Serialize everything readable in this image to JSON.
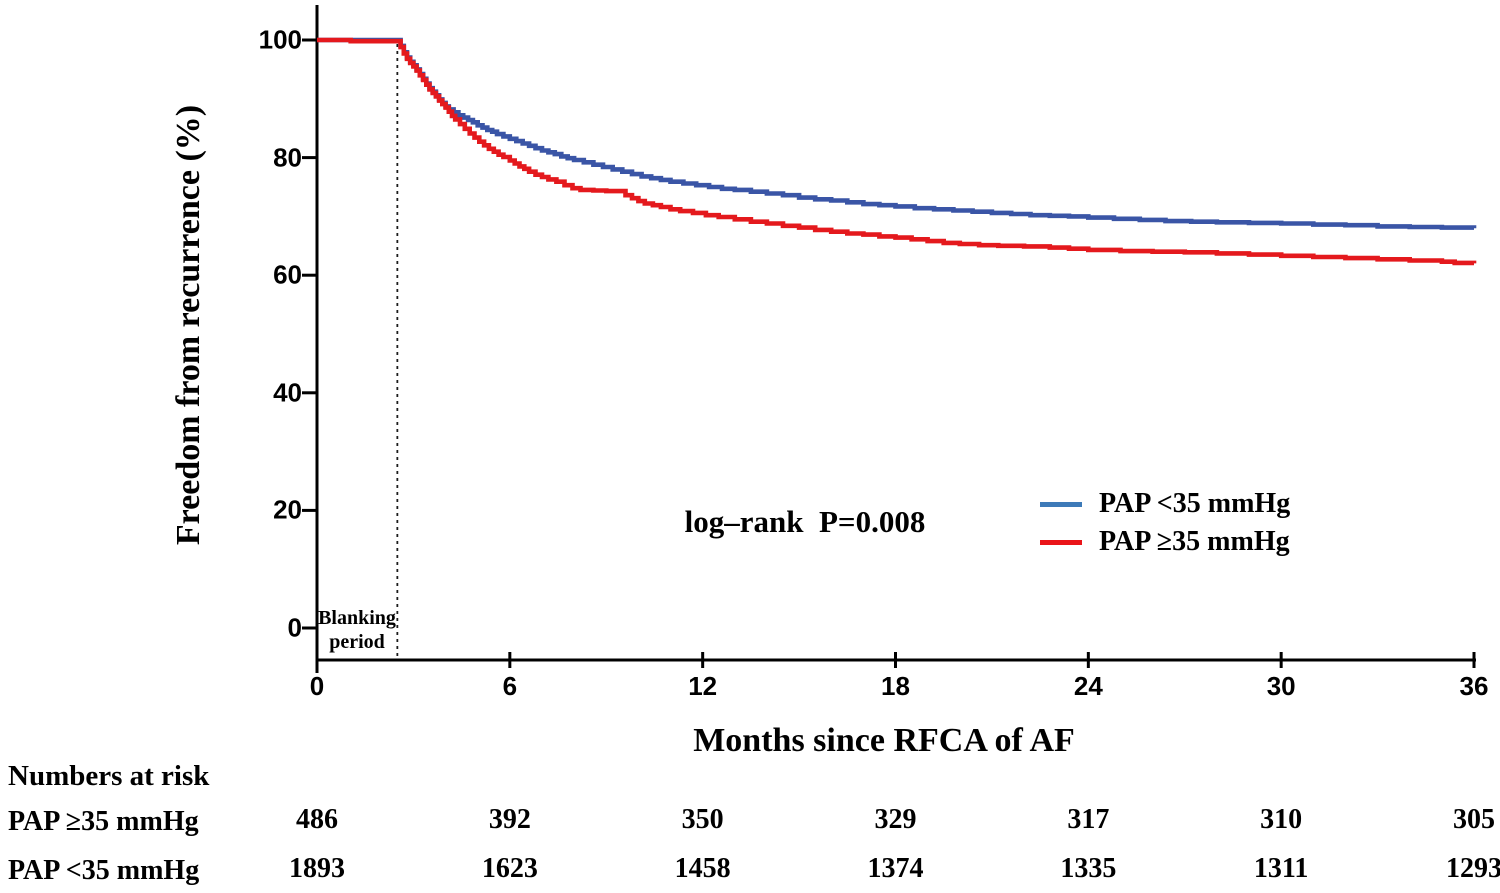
{
  "colors": {
    "background": "#ffffff",
    "axis": "#000000",
    "dashed_line": "#1c1c1c",
    "text": "#000000",
    "curve_blue": "#3a55a6",
    "curve_red": "#e4191d",
    "legend_blue": "#3d7ab8",
    "legend_red": "#ea1419"
  },
  "annotations": {
    "log_rank": "log–rank  P=0.008",
    "blanking_line1": "Blanking",
    "blanking_line2": "period"
  },
  "legend": [
    {
      "label": "PAP <35 mmHg",
      "color": "#3d7ab8"
    },
    {
      "label": "PAP ≥35 mmHg",
      "color": "#ea1419"
    }
  ],
  "risk_table": {
    "header": "Numbers at risk"
  },
  "chart_data": {
    "type": "line",
    "subtype": "kaplan-meier-step",
    "title": "",
    "xlabel": "Months since RFCA of AF",
    "ylabel": "Freedom from recurrence (%)",
    "xlim": [
      0,
      36
    ],
    "ylim": [
      0,
      100
    ],
    "x_ticks": [
      0,
      6,
      12,
      18,
      24,
      30,
      36
    ],
    "y_ticks": [
      0,
      20,
      40,
      60,
      80,
      100
    ],
    "grid": false,
    "legend_position": "right-middle",
    "blanking_period_end_month": 2.5,
    "log_rank_p": 0.008,
    "series": [
      {
        "name": "PAP <35 mmHg",
        "color": "#3a55a6",
        "step": true,
        "points": [
          [
            0,
            100
          ],
          [
            2.52,
            100
          ],
          [
            2.6,
            99.0
          ],
          [
            2.7,
            97.9
          ],
          [
            2.8,
            97.0
          ],
          [
            2.9,
            96.3
          ],
          [
            3.0,
            95.7
          ],
          [
            3.1,
            95.0
          ],
          [
            3.2,
            94.2
          ],
          [
            3.3,
            93.4
          ],
          [
            3.4,
            92.6
          ],
          [
            3.5,
            91.8
          ],
          [
            3.6,
            91.2
          ],
          [
            3.7,
            90.6
          ],
          [
            3.8,
            89.9
          ],
          [
            3.9,
            89.3
          ],
          [
            4.0,
            88.7
          ],
          [
            4.1,
            88.2
          ],
          [
            4.25,
            87.7
          ],
          [
            4.4,
            87.2
          ],
          [
            4.55,
            86.8
          ],
          [
            4.7,
            86.4
          ],
          [
            4.85,
            86.0
          ],
          [
            5.0,
            85.5
          ],
          [
            5.15,
            85.1
          ],
          [
            5.3,
            84.7
          ],
          [
            5.45,
            84.4
          ],
          [
            5.6,
            84.0
          ],
          [
            5.8,
            83.6
          ],
          [
            6.0,
            83.2
          ],
          [
            6.2,
            82.8
          ],
          [
            6.4,
            82.4
          ],
          [
            6.6,
            82.0
          ],
          [
            6.8,
            81.6
          ],
          [
            7.0,
            81.2
          ],
          [
            7.2,
            80.9
          ],
          [
            7.4,
            80.6
          ],
          [
            7.6,
            80.2
          ],
          [
            7.8,
            79.9
          ],
          [
            8.0,
            79.6
          ],
          [
            8.3,
            79.2
          ],
          [
            8.6,
            78.8
          ],
          [
            8.9,
            78.4
          ],
          [
            9.2,
            78.0
          ],
          [
            9.5,
            77.6
          ],
          [
            9.8,
            77.2
          ],
          [
            10.1,
            76.8
          ],
          [
            10.4,
            76.5
          ],
          [
            10.7,
            76.2
          ],
          [
            11.0,
            75.9
          ],
          [
            11.4,
            75.6
          ],
          [
            11.8,
            75.3
          ],
          [
            12.2,
            75.0
          ],
          [
            12.6,
            74.7
          ],
          [
            13.0,
            74.5
          ],
          [
            13.5,
            74.2
          ],
          [
            14.0,
            73.9
          ],
          [
            14.5,
            73.6
          ],
          [
            15.0,
            73.2
          ],
          [
            15.5,
            72.9
          ],
          [
            16.0,
            72.7
          ],
          [
            16.5,
            72.4
          ],
          [
            17.0,
            72.1
          ],
          [
            17.5,
            71.9
          ],
          [
            18.0,
            71.7
          ],
          [
            18.6,
            71.4
          ],
          [
            19.2,
            71.2
          ],
          [
            19.8,
            71.0
          ],
          [
            20.4,
            70.8
          ],
          [
            21.0,
            70.6
          ],
          [
            21.6,
            70.4
          ],
          [
            22.2,
            70.2
          ],
          [
            22.8,
            70.1
          ],
          [
            23.4,
            70.0
          ],
          [
            24.0,
            69.8
          ],
          [
            24.8,
            69.6
          ],
          [
            25.6,
            69.4
          ],
          [
            26.4,
            69.2
          ],
          [
            27.2,
            69.1
          ],
          [
            28.0,
            69.0
          ],
          [
            29.0,
            68.9
          ],
          [
            30.0,
            68.8
          ],
          [
            31.0,
            68.6
          ],
          [
            32.0,
            68.5
          ],
          [
            33.0,
            68.3
          ],
          [
            34.0,
            68.2
          ],
          [
            35.0,
            68.1
          ],
          [
            36.0,
            68.0
          ]
        ]
      },
      {
        "name": "PAP ≥35 mmHg",
        "color": "#e4191d",
        "step": true,
        "points": [
          [
            0,
            100
          ],
          [
            1.0,
            100
          ],
          [
            1.05,
            99.8
          ],
          [
            2.52,
            99.8
          ],
          [
            2.6,
            98.8
          ],
          [
            2.7,
            97.7
          ],
          [
            2.8,
            96.8
          ],
          [
            2.9,
            96.1
          ],
          [
            3.0,
            95.5
          ],
          [
            3.1,
            94.8
          ],
          [
            3.2,
            94.0
          ],
          [
            3.3,
            93.2
          ],
          [
            3.4,
            92.4
          ],
          [
            3.5,
            91.6
          ],
          [
            3.6,
            91.0
          ],
          [
            3.7,
            90.4
          ],
          [
            3.8,
            89.7
          ],
          [
            3.9,
            89.1
          ],
          [
            4.0,
            88.5
          ],
          [
            4.1,
            87.8
          ],
          [
            4.2,
            87.1
          ],
          [
            4.3,
            86.5
          ],
          [
            4.45,
            85.7
          ],
          [
            4.6,
            84.9
          ],
          [
            4.75,
            84.1
          ],
          [
            4.9,
            83.4
          ],
          [
            5.05,
            82.7
          ],
          [
            5.2,
            82.1
          ],
          [
            5.35,
            81.5
          ],
          [
            5.5,
            81.0
          ],
          [
            5.65,
            80.5
          ],
          [
            5.8,
            80.1
          ],
          [
            6.0,
            79.5
          ],
          [
            6.15,
            79.0
          ],
          [
            6.3,
            78.5
          ],
          [
            6.45,
            78.1
          ],
          [
            6.6,
            77.6
          ],
          [
            6.8,
            77.1
          ],
          [
            7.0,
            76.7
          ],
          [
            7.2,
            76.3
          ],
          [
            7.45,
            75.9
          ],
          [
            7.7,
            75.3
          ],
          [
            7.95,
            74.8
          ],
          [
            8.2,
            74.5
          ],
          [
            8.6,
            74.4
          ],
          [
            9.0,
            74.3
          ],
          [
            9.45,
            74.3
          ],
          [
            9.6,
            73.6
          ],
          [
            9.8,
            73.1
          ],
          [
            10.0,
            72.6
          ],
          [
            10.2,
            72.2
          ],
          [
            10.45,
            71.9
          ],
          [
            10.7,
            71.6
          ],
          [
            11.0,
            71.2
          ],
          [
            11.3,
            70.9
          ],
          [
            11.7,
            70.6
          ],
          [
            12.1,
            70.2
          ],
          [
            12.5,
            69.9
          ],
          [
            13.0,
            69.5
          ],
          [
            13.5,
            69.1
          ],
          [
            14.0,
            68.8
          ],
          [
            14.5,
            68.4
          ],
          [
            15.0,
            68.1
          ],
          [
            15.5,
            67.7
          ],
          [
            16.0,
            67.4
          ],
          [
            16.5,
            67.1
          ],
          [
            17.0,
            66.9
          ],
          [
            17.5,
            66.6
          ],
          [
            18.0,
            66.4
          ],
          [
            18.5,
            66.1
          ],
          [
            19.0,
            65.8
          ],
          [
            19.5,
            65.5
          ],
          [
            20.0,
            65.3
          ],
          [
            20.6,
            65.1
          ],
          [
            21.2,
            65.0
          ],
          [
            22.0,
            64.9
          ],
          [
            22.8,
            64.7
          ],
          [
            23.4,
            64.5
          ],
          [
            24.0,
            64.3
          ],
          [
            25.0,
            64.1
          ],
          [
            26.0,
            64.0
          ],
          [
            27.0,
            63.9
          ],
          [
            28.0,
            63.7
          ],
          [
            29.0,
            63.5
          ],
          [
            30.0,
            63.3
          ],
          [
            31.0,
            63.1
          ],
          [
            32.0,
            62.9
          ],
          [
            33.0,
            62.7
          ],
          [
            34.0,
            62.5
          ],
          [
            35.0,
            62.3
          ],
          [
            35.4,
            62.1
          ],
          [
            36.0,
            62.0
          ]
        ]
      }
    ],
    "numbers_at_risk": {
      "months": [
        0,
        6,
        12,
        18,
        24,
        30,
        36
      ],
      "rows": [
        {
          "label": "PAP ≥35 mmHg",
          "values": [
            486,
            392,
            350,
            329,
            317,
            310,
            305
          ]
        },
        {
          "label": "PAP <35 mmHg",
          "values": [
            1893,
            1623,
            1458,
            1374,
            1335,
            1311,
            1293
          ]
        }
      ]
    }
  }
}
